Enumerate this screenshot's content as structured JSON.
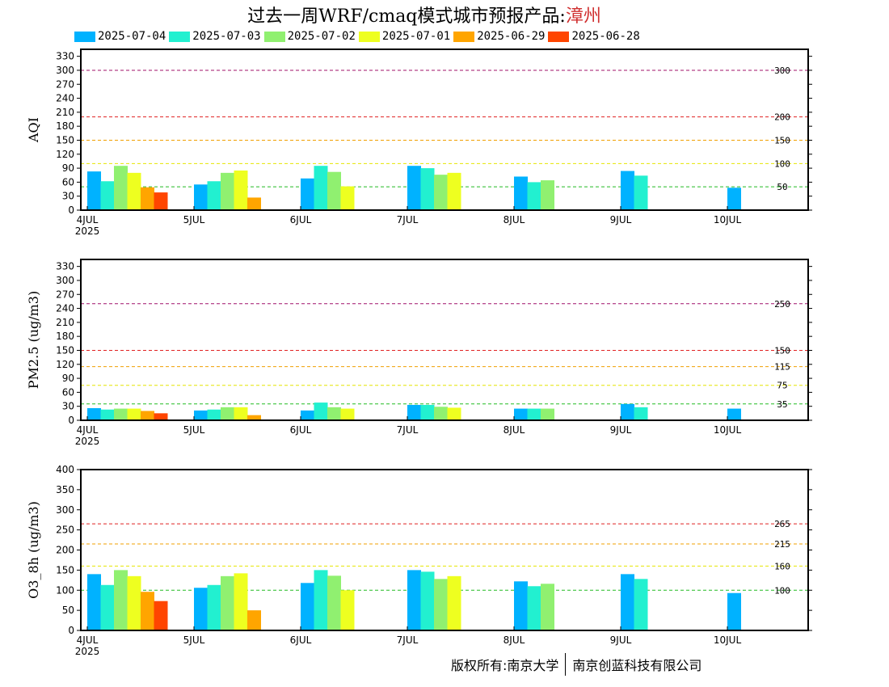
{
  "title": {
    "prefix": "过去一周WRF/cmaq模式城市预报产品:",
    "city": "漳州"
  },
  "colors": {
    "axis": "#000000",
    "thresholds": {
      "good": "#22bb22",
      "moderate": "#e6e600",
      "light": "#f0a000",
      "medium": "#e02020",
      "heavy": "#a0106a"
    }
  },
  "legend": [
    {
      "label": "2025-07-04",
      "color": "#00b2ff"
    },
    {
      "label": "2025-07-03",
      "color": "#22f0d0"
    },
    {
      "label": "2025-07-02",
      "color": "#90f070"
    },
    {
      "label": "2025-07-01",
      "color": "#eeff20"
    },
    {
      "label": "2025-06-29",
      "color": "#ffa500"
    },
    {
      "label": "2025-06-28",
      "color": "#ff4500"
    }
  ],
  "footer": {
    "left": "版权所有:南京大学",
    "right": "南京创蓝科技有限公司"
  },
  "chart_data": [
    {
      "type": "bar",
      "ylabel": "AQI",
      "ylim": [
        0,
        345
      ],
      "yticks": [
        0,
        30,
        60,
        90,
        120,
        150,
        180,
        210,
        240,
        270,
        300,
        330
      ],
      "x_tick_labels": [
        "4JUL",
        "5JUL",
        "6JUL",
        "7JUL",
        "8JUL",
        "9JUL",
        "10JUL"
      ],
      "x_year_label": "2025",
      "thresholds": [
        {
          "value": 50,
          "label": "50",
          "level": "good"
        },
        {
          "value": 100,
          "label": "100",
          "level": "moderate"
        },
        {
          "value": 150,
          "label": "150",
          "level": "light"
        },
        {
          "value": 200,
          "label": "200",
          "level": "medium"
        },
        {
          "value": 300,
          "label": "300",
          "level": "heavy"
        }
      ],
      "series": [
        {
          "name": "2025-07-04",
          "values": [
            83,
            55,
            68,
            95,
            72,
            84,
            48
          ]
        },
        {
          "name": "2025-07-03",
          "values": [
            62,
            62,
            95,
            90,
            60,
            74,
            null
          ]
        },
        {
          "name": "2025-07-02",
          "values": [
            95,
            80,
            82,
            76,
            64,
            null,
            null
          ]
        },
        {
          "name": "2025-07-01",
          "values": [
            80,
            85,
            51,
            80,
            null,
            null,
            null
          ]
        },
        {
          "name": "2025-06-29",
          "values": [
            49,
            27,
            null,
            null,
            null,
            null,
            null
          ]
        },
        {
          "name": "2025-06-28",
          "values": [
            38,
            null,
            null,
            null,
            null,
            null,
            null
          ]
        }
      ]
    },
    {
      "type": "bar",
      "ylabel": "PM2.5 (ug/m3)",
      "ylim": [
        0,
        345
      ],
      "yticks": [
        0,
        30,
        60,
        90,
        120,
        150,
        180,
        210,
        240,
        270,
        300,
        330
      ],
      "x_tick_labels": [
        "4JUL",
        "5JUL",
        "6JUL",
        "7JUL",
        "8JUL",
        "9JUL",
        "10JUL"
      ],
      "x_year_label": "2025",
      "thresholds": [
        {
          "value": 35,
          "label": "35",
          "level": "good"
        },
        {
          "value": 75,
          "label": "75",
          "level": "moderate"
        },
        {
          "value": 115,
          "label": "115",
          "level": "light"
        },
        {
          "value": 150,
          "label": "150",
          "level": "medium"
        },
        {
          "value": 250,
          "label": "250",
          "level": "heavy"
        }
      ],
      "series": [
        {
          "name": "2025-07-04",
          "values": [
            26,
            21,
            21,
            33,
            25,
            35,
            25
          ]
        },
        {
          "name": "2025-07-03",
          "values": [
            23,
            23,
            38,
            33,
            25,
            28,
            null
          ]
        },
        {
          "name": "2025-07-02",
          "values": [
            25,
            28,
            28,
            29,
            25,
            null,
            null
          ]
        },
        {
          "name": "2025-07-01",
          "values": [
            25,
            28,
            25,
            27,
            null,
            null,
            null
          ]
        },
        {
          "name": "2025-06-29",
          "values": [
            20,
            11,
            null,
            null,
            null,
            null,
            null
          ]
        },
        {
          "name": "2025-06-28",
          "values": [
            15,
            null,
            null,
            null,
            null,
            null,
            null
          ]
        }
      ]
    },
    {
      "type": "bar",
      "ylabel": "O3_8h (ug/m3)",
      "ylim": [
        0,
        400
      ],
      "yticks": [
        0,
        50,
        100,
        150,
        200,
        250,
        300,
        350,
        400
      ],
      "x_tick_labels": [
        "4JUL",
        "5JUL",
        "6JUL",
        "7JUL",
        "8JUL",
        "9JUL",
        "10JUL"
      ],
      "x_year_label": "2025",
      "thresholds": [
        {
          "value": 100,
          "label": "100",
          "level": "good"
        },
        {
          "value": 160,
          "label": "160",
          "level": "moderate"
        },
        {
          "value": 215,
          "label": "215",
          "level": "light"
        },
        {
          "value": 265,
          "label": "265",
          "level": "medium"
        }
      ],
      "series": [
        {
          "name": "2025-07-04",
          "values": [
            140,
            106,
            118,
            150,
            122,
            140,
            93
          ]
        },
        {
          "name": "2025-07-03",
          "values": [
            113,
            113,
            150,
            146,
            110,
            128,
            null
          ]
        },
        {
          "name": "2025-07-02",
          "values": [
            150,
            135,
            136,
            128,
            116,
            null,
            null
          ]
        },
        {
          "name": "2025-07-01",
          "values": [
            135,
            142,
            100,
            135,
            null,
            null,
            null
          ]
        },
        {
          "name": "2025-06-29",
          "values": [
            96,
            50,
            null,
            null,
            null,
            null,
            null
          ]
        },
        {
          "name": "2025-06-28",
          "values": [
            73,
            null,
            null,
            null,
            null,
            null,
            null
          ]
        }
      ]
    }
  ]
}
